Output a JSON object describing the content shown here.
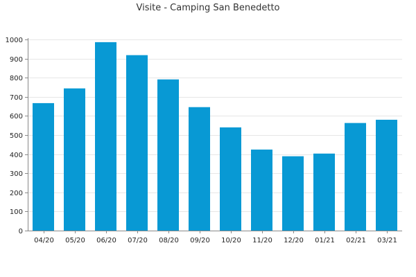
{
  "chart_data": {
    "type": "bar",
    "title": "Visite - Camping San Benedetto",
    "xlabel": "",
    "ylabel": "",
    "categories": [
      "04/20",
      "05/20",
      "06/20",
      "07/20",
      "08/20",
      "09/20",
      "10/20",
      "11/20",
      "12/20",
      "01/21",
      "02/21",
      "03/21"
    ],
    "values": [
      667,
      744,
      986,
      918,
      791,
      646,
      540,
      424,
      389,
      403,
      563,
      580
    ],
    "ylim": [
      0,
      1000
    ],
    "yticks": [
      0,
      100,
      200,
      300,
      400,
      500,
      600,
      700,
      800,
      900,
      1000
    ],
    "grid": true,
    "legend": "none",
    "colors": {
      "bar": "#0899d4",
      "grid": "#e6e6e6",
      "axis": "#888888"
    }
  }
}
